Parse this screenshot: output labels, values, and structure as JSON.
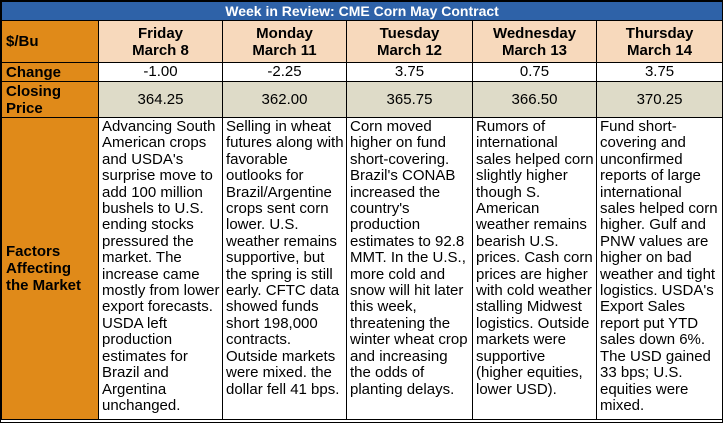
{
  "title": "Week in Review: CME Corn May Contract",
  "colors": {
    "title_bg": "#2e62a8",
    "header_bg": "#f7d9bc",
    "side_bg": "#e08a19",
    "closing_bg": "#dedbc8"
  },
  "row_labels": {
    "unit": "$/Bu",
    "change": "Change",
    "closing_line1": "Closing",
    "closing_line2": "Price",
    "factors_line1": "Factors",
    "factors_line2": "Affecting",
    "factors_line3": "the Market"
  },
  "days": [
    {
      "day": "Friday",
      "date": "March 8",
      "change": "-1.00",
      "close": "364.25",
      "factor": "Advancing South American crops and USDA's surprise move to add 100 million bushels to U.S. ending stocks pressured the market. The increase came mostly from lower export forecasts. USDA left production estimates for Brazil and Argentina unchanged."
    },
    {
      "day": "Monday",
      "date": "March 11",
      "change": "-2.25",
      "close": "362.00",
      "factor": "Selling in wheat futures along with favorable outlooks for Brazil/Argentine crops sent corn lower. U.S. weather remains supportive, but the spring is still early. CFTC data showed funds short 198,000 contracts. Outside markets were mixed. the dollar fell 41 bps."
    },
    {
      "day": "Tuesday",
      "date": "March 12",
      "change": "3.75",
      "close": "365.75",
      "factor": "Corn moved higher on fund short-covering. Brazil's CONAB increased the country's production estimates to 92.8 MMT. In the U.S., more cold and snow will hit later this week, threatening the winter wheat crop and increasing the odds of planting delays."
    },
    {
      "day": "Wednesday",
      "date": "March 13",
      "change": "0.75",
      "close": "366.50",
      "factor": "Rumors of international sales helped corn slightly higher though S. American weather remains bearish U.S. prices. Cash corn prices are higher with cold weather stalling Midwest logistics. Outside markets were supportive (higher equities, lower USD)."
    },
    {
      "day": "Thursday",
      "date": "March 14",
      "change": "3.75",
      "close": "370.25",
      "factor": "Fund short-covering and unconfirmed reports of large international sales helped corn higher. Gulf and PNW values are higher on bad weather and tight logistics. USDA's Export Sales report put YTD sales down 6%. The USD gained 33 bps; U.S. equities were mixed."
    }
  ]
}
